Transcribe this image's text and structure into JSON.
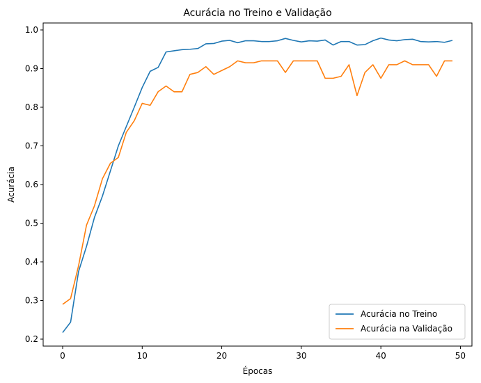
{
  "chart_data": {
    "type": "line",
    "title": "Acurácia no Treino e Validação",
    "xlabel": "Épocas",
    "ylabel": "Acurácia",
    "xlim": [
      -2.45,
      51.45
    ],
    "ylim": [
      0.182,
      1.018
    ],
    "xticks": [
      0,
      10,
      20,
      30,
      40,
      50
    ],
    "xtick_labels": [
      "0",
      "10",
      "20",
      "30",
      "40",
      "50"
    ],
    "yticks": [
      0.2,
      0.3,
      0.4,
      0.5,
      0.6,
      0.7,
      0.8,
      0.9,
      1.0
    ],
    "ytick_labels": [
      "0.2",
      "0.3",
      "0.4",
      "0.5",
      "0.6",
      "0.7",
      "0.8",
      "0.9",
      "1.0"
    ],
    "grid": false,
    "legend_position": "lower-right",
    "x": [
      0,
      1,
      2,
      3,
      4,
      5,
      6,
      7,
      8,
      9,
      10,
      11,
      12,
      13,
      14,
      15,
      16,
      17,
      18,
      19,
      20,
      21,
      22,
      23,
      24,
      25,
      26,
      27,
      28,
      29,
      30,
      31,
      32,
      33,
      34,
      35,
      36,
      37,
      38,
      39,
      40,
      41,
      42,
      43,
      44,
      45,
      46,
      47,
      48,
      49
    ],
    "series": [
      {
        "name": "Acurácia no Treino",
        "color": "#1f77b4",
        "values": [
          0.217,
          0.244,
          0.375,
          0.44,
          0.515,
          0.57,
          0.635,
          0.7,
          0.75,
          0.8,
          0.851,
          0.893,
          0.903,
          0.943,
          0.946,
          0.949,
          0.95,
          0.952,
          0.964,
          0.965,
          0.971,
          0.973,
          0.967,
          0.972,
          0.972,
          0.97,
          0.97,
          0.972,
          0.978,
          0.973,
          0.969,
          0.972,
          0.971,
          0.974,
          0.961,
          0.97,
          0.97,
          0.961,
          0.962,
          0.972,
          0.979,
          0.974,
          0.972,
          0.975,
          0.976,
          0.97,
          0.969,
          0.97,
          0.968,
          0.973
        ]
      },
      {
        "name": "Acurácia na Validação",
        "color": "#ff7f0e",
        "values": [
          0.29,
          0.305,
          0.39,
          0.495,
          0.545,
          0.615,
          0.655,
          0.67,
          0.735,
          0.765,
          0.81,
          0.805,
          0.84,
          0.855,
          0.84,
          0.84,
          0.885,
          0.89,
          0.905,
          0.885,
          0.895,
          0.905,
          0.92,
          0.915,
          0.915,
          0.92,
          0.92,
          0.92,
          0.89,
          0.92,
          0.92,
          0.92,
          0.92,
          0.875,
          0.875,
          0.88,
          0.91,
          0.83,
          0.89,
          0.91,
          0.875,
          0.91,
          0.91,
          0.92,
          0.91,
          0.91,
          0.91,
          0.88,
          0.92,
          0.92
        ]
      }
    ]
  }
}
